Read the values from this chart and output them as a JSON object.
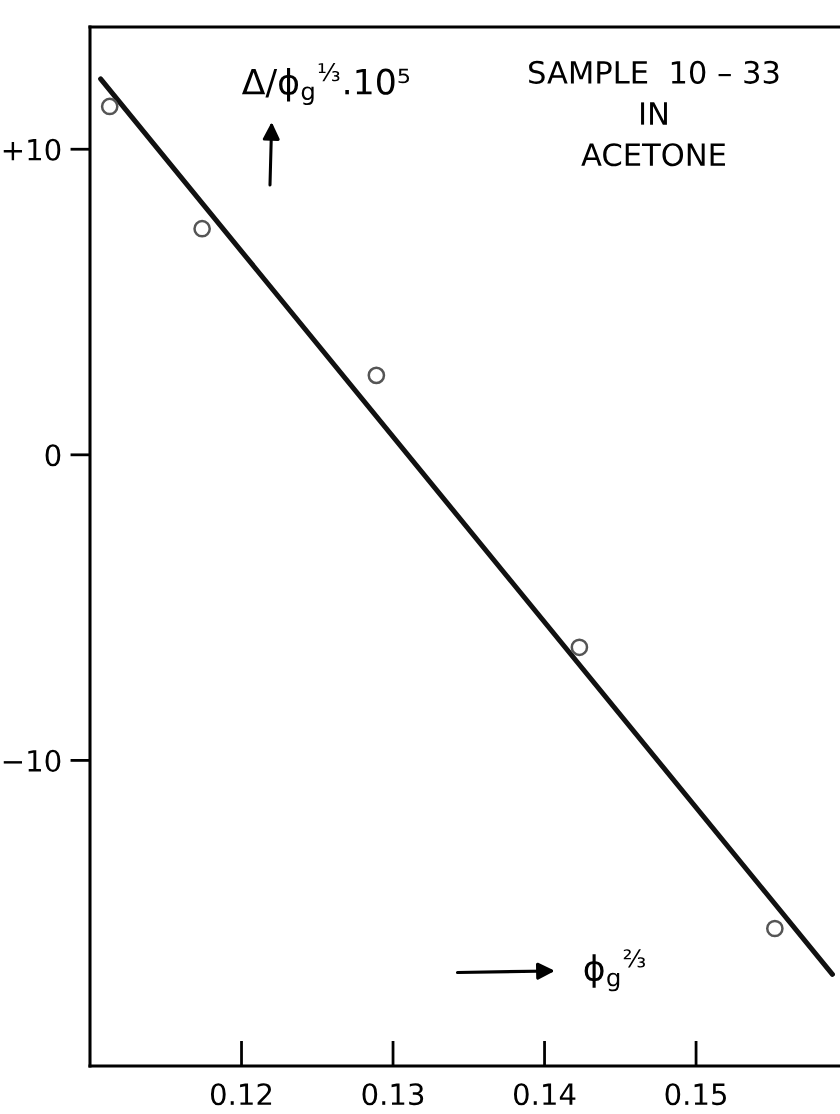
{
  "chart_data": {
    "type": "scatter",
    "xlabel": "ϕ$_{g}$$^{⅔}$",
    "ylabel": "Δ/ϕ$_{g}$$^{⅓}$.10⁵",
    "annotations": [
      "SAMPLE  10 – 33\nIN\nACETONE"
    ],
    "series": [
      {
        "color": "#555555",
        "marker": "circle",
        "x": [
          0.1113,
          0.1174,
          0.1289,
          0.1423,
          0.1552
        ],
        "values": [
          11.4,
          7.4,
          2.6,
          -6.3,
          -15.5
        ]
      },
      {
        "type": "line",
        "color": "#111111",
        "marker": "none",
        "line_style": "solid",
        "x": [
          0.1107,
          0.159
        ],
        "values": [
          12.3,
          -17.0
        ]
      }
    ],
    "xlim": [
      0.11,
      0.1595
    ],
    "ylim": [
      -20,
      14
    ],
    "xticks": [
      0.12,
      0.13,
      0.14,
      0.15
    ],
    "yticks": [
      {
        "value": -10,
        "label": "−10"
      },
      0,
      {
        "value": 10,
        "label": "+10"
      }
    ]
  }
}
